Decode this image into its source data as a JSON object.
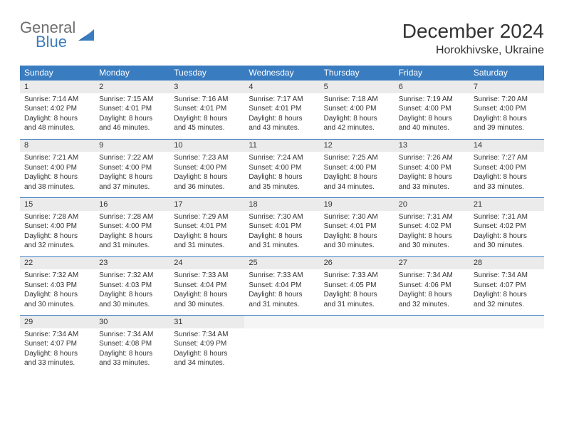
{
  "logo": {
    "word1": "General",
    "word2": "Blue"
  },
  "title": "December 2024",
  "location": "Horokhivske, Ukraine",
  "colors": {
    "header_bg": "#3a7cc0",
    "header_text": "#ffffff",
    "daynum_bg": "#ebebeb",
    "border": "#3a7cc0",
    "text": "#333333",
    "logo_gray": "#6e6e6e",
    "logo_blue": "#3a7cc0"
  },
  "daysOfWeek": [
    "Sunday",
    "Monday",
    "Tuesday",
    "Wednesday",
    "Thursday",
    "Friday",
    "Saturday"
  ],
  "weeks": [
    {
      "nums": [
        "1",
        "2",
        "3",
        "4",
        "5",
        "6",
        "7"
      ],
      "cells": [
        {
          "sunrise": "7:14 AM",
          "sunset": "4:02 PM",
          "daylight": "8 hours and 48 minutes."
        },
        {
          "sunrise": "7:15 AM",
          "sunset": "4:01 PM",
          "daylight": "8 hours and 46 minutes."
        },
        {
          "sunrise": "7:16 AM",
          "sunset": "4:01 PM",
          "daylight": "8 hours and 45 minutes."
        },
        {
          "sunrise": "7:17 AM",
          "sunset": "4:01 PM",
          "daylight": "8 hours and 43 minutes."
        },
        {
          "sunrise": "7:18 AM",
          "sunset": "4:00 PM",
          "daylight": "8 hours and 42 minutes."
        },
        {
          "sunrise": "7:19 AM",
          "sunset": "4:00 PM",
          "daylight": "8 hours and 40 minutes."
        },
        {
          "sunrise": "7:20 AM",
          "sunset": "4:00 PM",
          "daylight": "8 hours and 39 minutes."
        }
      ]
    },
    {
      "nums": [
        "8",
        "9",
        "10",
        "11",
        "12",
        "13",
        "14"
      ],
      "cells": [
        {
          "sunrise": "7:21 AM",
          "sunset": "4:00 PM",
          "daylight": "8 hours and 38 minutes."
        },
        {
          "sunrise": "7:22 AM",
          "sunset": "4:00 PM",
          "daylight": "8 hours and 37 minutes."
        },
        {
          "sunrise": "7:23 AM",
          "sunset": "4:00 PM",
          "daylight": "8 hours and 36 minutes."
        },
        {
          "sunrise": "7:24 AM",
          "sunset": "4:00 PM",
          "daylight": "8 hours and 35 minutes."
        },
        {
          "sunrise": "7:25 AM",
          "sunset": "4:00 PM",
          "daylight": "8 hours and 34 minutes."
        },
        {
          "sunrise": "7:26 AM",
          "sunset": "4:00 PM",
          "daylight": "8 hours and 33 minutes."
        },
        {
          "sunrise": "7:27 AM",
          "sunset": "4:00 PM",
          "daylight": "8 hours and 33 minutes."
        }
      ]
    },
    {
      "nums": [
        "15",
        "16",
        "17",
        "18",
        "19",
        "20",
        "21"
      ],
      "cells": [
        {
          "sunrise": "7:28 AM",
          "sunset": "4:00 PM",
          "daylight": "8 hours and 32 minutes."
        },
        {
          "sunrise": "7:28 AM",
          "sunset": "4:00 PM",
          "daylight": "8 hours and 31 minutes."
        },
        {
          "sunrise": "7:29 AM",
          "sunset": "4:01 PM",
          "daylight": "8 hours and 31 minutes."
        },
        {
          "sunrise": "7:30 AM",
          "sunset": "4:01 PM",
          "daylight": "8 hours and 31 minutes."
        },
        {
          "sunrise": "7:30 AM",
          "sunset": "4:01 PM",
          "daylight": "8 hours and 30 minutes."
        },
        {
          "sunrise": "7:31 AM",
          "sunset": "4:02 PM",
          "daylight": "8 hours and 30 minutes."
        },
        {
          "sunrise": "7:31 AM",
          "sunset": "4:02 PM",
          "daylight": "8 hours and 30 minutes."
        }
      ]
    },
    {
      "nums": [
        "22",
        "23",
        "24",
        "25",
        "26",
        "27",
        "28"
      ],
      "cells": [
        {
          "sunrise": "7:32 AM",
          "sunset": "4:03 PM",
          "daylight": "8 hours and 30 minutes."
        },
        {
          "sunrise": "7:32 AM",
          "sunset": "4:03 PM",
          "daylight": "8 hours and 30 minutes."
        },
        {
          "sunrise": "7:33 AM",
          "sunset": "4:04 PM",
          "daylight": "8 hours and 30 minutes."
        },
        {
          "sunrise": "7:33 AM",
          "sunset": "4:04 PM",
          "daylight": "8 hours and 31 minutes."
        },
        {
          "sunrise": "7:33 AM",
          "sunset": "4:05 PM",
          "daylight": "8 hours and 31 minutes."
        },
        {
          "sunrise": "7:34 AM",
          "sunset": "4:06 PM",
          "daylight": "8 hours and 32 minutes."
        },
        {
          "sunrise": "7:34 AM",
          "sunset": "4:07 PM",
          "daylight": "8 hours and 32 minutes."
        }
      ]
    },
    {
      "nums": [
        "29",
        "30",
        "31",
        "",
        "",
        "",
        ""
      ],
      "cells": [
        {
          "sunrise": "7:34 AM",
          "sunset": "4:07 PM",
          "daylight": "8 hours and 33 minutes."
        },
        {
          "sunrise": "7:34 AM",
          "sunset": "4:08 PM",
          "daylight": "8 hours and 33 minutes."
        },
        {
          "sunrise": "7:34 AM",
          "sunset": "4:09 PM",
          "daylight": "8 hours and 34 minutes."
        },
        null,
        null,
        null,
        null
      ]
    }
  ],
  "labels": {
    "sunrise": "Sunrise: ",
    "sunset": "Sunset: ",
    "daylight": "Daylight: "
  }
}
